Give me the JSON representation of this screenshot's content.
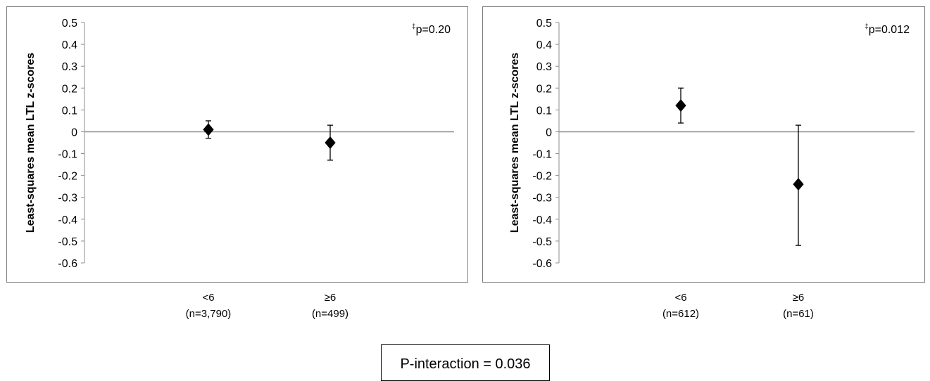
{
  "chart_data": [
    {
      "type": "scatter",
      "ylabel": "Least-squares mean LTL z-scores",
      "ylim": [
        -0.6,
        0.5
      ],
      "yticks": [
        "0.5",
        "0.4",
        "0.3",
        "0.2",
        "0.1",
        "0",
        "-0.1",
        "-0.2",
        "-0.3",
        "-0.4",
        "-0.5",
        "-0.6"
      ],
      "categories": [
        "<6",
        "≥6"
      ],
      "category_sublabels": [
        "(n=3,790)",
        "(n=499)"
      ],
      "values": [
        0.01,
        -0.05
      ],
      "error_low": [
        -0.03,
        -0.13
      ],
      "error_high": [
        0.05,
        0.03
      ],
      "annotation": {
        "mark": "‡",
        "text": "p=0.20"
      },
      "grid": false,
      "marker": "diamond"
    },
    {
      "type": "scatter",
      "ylabel": "Least-squares mean LTL z-scores",
      "ylim": [
        -0.6,
        0.5
      ],
      "yticks": [
        "0.5",
        "0.4",
        "0.3",
        "0.2",
        "0.1",
        "0",
        "-0.1",
        "-0.2",
        "-0.3",
        "-0.4",
        "-0.5",
        "-0.6"
      ],
      "categories": [
        "<6",
        "≥6"
      ],
      "category_sublabels": [
        "(n=612)",
        "(n=61)"
      ],
      "values": [
        0.12,
        -0.24
      ],
      "error_low": [
        0.04,
        -0.52
      ],
      "error_high": [
        0.2,
        0.03
      ],
      "annotation": {
        "mark": "‡",
        "text": "p=0.012"
      },
      "grid": false,
      "marker": "diamond"
    }
  ],
  "footer": {
    "interaction_label": "P-interaction = 0.036"
  },
  "colors": {
    "marker": "#000000",
    "zero_line": "#8c8c8c",
    "axis": "#8c8c8c",
    "frame": "#7f7f7f"
  }
}
